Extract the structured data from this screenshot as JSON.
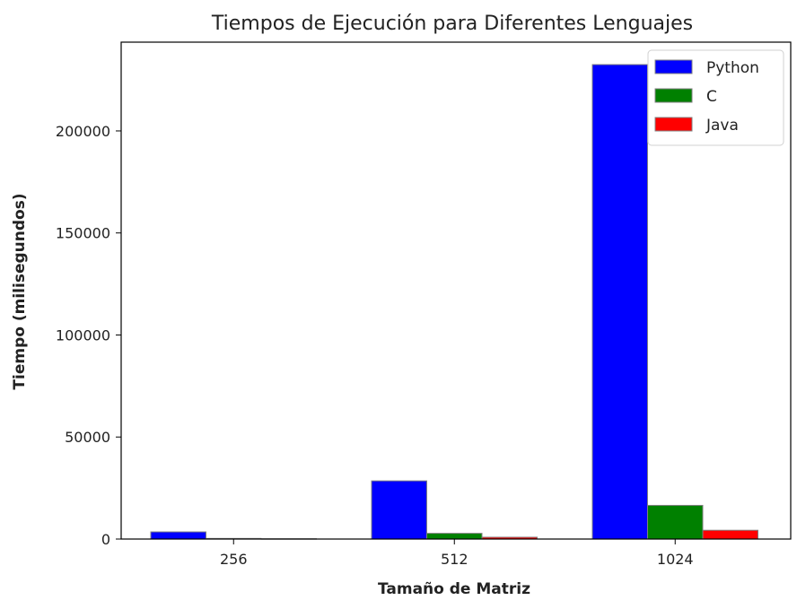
{
  "chart_data": {
    "type": "bar",
    "title": "Tiempos de Ejecución para Diferentes Lenguajes",
    "xlabel": "Tamaño de Matriz",
    "ylabel": "Tiempo (milisegundos)",
    "categories": [
      "256",
      "512",
      "1024"
    ],
    "series": [
      {
        "name": "Python",
        "color": "#0000ff",
        "values": [
          3500,
          28500,
          232500
        ]
      },
      {
        "name": "C",
        "color": "#008000",
        "values": [
          300,
          2800,
          16500
        ]
      },
      {
        "name": "Java",
        "color": "#ff0000",
        "values": [
          150,
          900,
          4300
        ]
      }
    ],
    "ylim": [
      0,
      243500
    ],
    "yticks": [
      0,
      50000,
      100000,
      150000,
      200000
    ],
    "ytick_labels": [
      "0",
      "50000",
      "100000",
      "150000",
      "200000"
    ],
    "grid": false,
    "legend": "top-right"
  }
}
